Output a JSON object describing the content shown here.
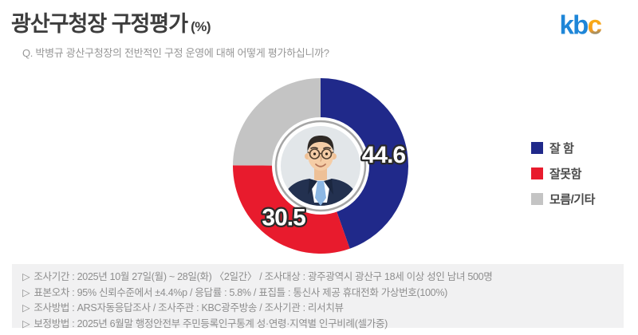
{
  "header": {
    "title": "광산구청장 구정평가",
    "title_unit": "(%)",
    "question": "Q. 박병규 광산구청장의 전반적인 구정 운영에 대해 어떻게 평가하십니까?"
  },
  "logo": {
    "letters": [
      "k",
      "b",
      "c"
    ],
    "blue": "#1e86d8",
    "yellow": "#ffc20e",
    "orange": "#f59b1e"
  },
  "chart_data": {
    "type": "pie",
    "title": "광산구청장 구정평가 (%)",
    "categories": [
      "잘 함",
      "잘못함",
      "모름/기타"
    ],
    "values": [
      44.6,
      30.5,
      24.9
    ],
    "colors": [
      "#20298a",
      "#e81b2d",
      "#c4c4c4"
    ],
    "show_value_label": [
      true,
      true,
      false
    ],
    "value_labels": [
      "44.6",
      "30.5"
    ],
    "start_angle_deg": 0,
    "direction": "clockwise",
    "label_color": "#ffffff",
    "label_outline": "#2a2a2a",
    "legend_position": "right",
    "center_photo_alt": "박병규 광산구청장 사진"
  },
  "legend": {
    "items": [
      {
        "label": "잘 함",
        "color": "#20298a"
      },
      {
        "label": "잘못함",
        "color": "#e81b2d"
      },
      {
        "label": "모름/기타",
        "color": "#c4c4c4"
      }
    ]
  },
  "footnotes": {
    "marker": "▷",
    "lines": [
      "조사기간 : 2025년 10월 27일(월) ~ 28일(화) 〈2일간〉 / 조사대상 : 광주광역시 광산구 18세 이상 성인 남녀 500명",
      "표본오차 : 95% 신뢰수준에서 ±4.4%p / 응답률 : 5.8% / 표집틀 : 통신사 제공 휴대전화 가상번호(100%)",
      "조사방법 : ARS자동응답조사 / 조사주관 : KBC광주방송 / 조사기관 : 리서치뷰",
      "보정방법 : 2025년 6월말 행정안전부 주민등록인구통계 성·연령·지역별 인구비례(셀가중)"
    ]
  }
}
